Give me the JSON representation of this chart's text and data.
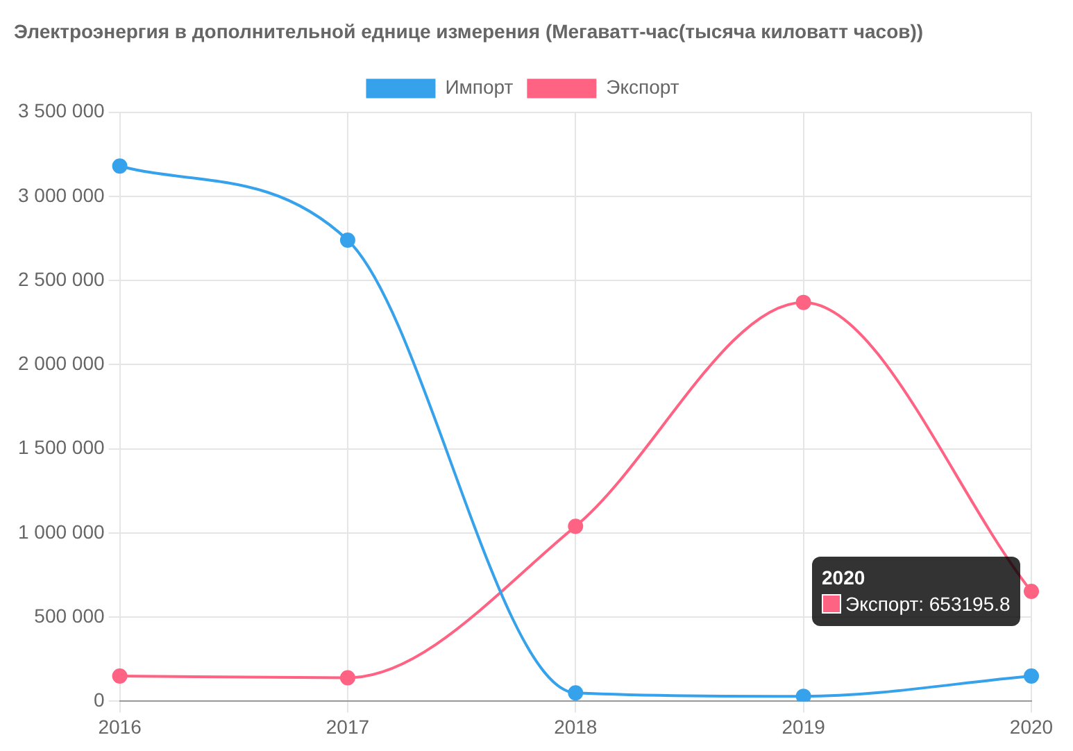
{
  "chart_data": {
    "type": "line",
    "title": "Электроэнергия в дополнительной еднице измерения (Мегаватт-час(тысяча киловатт часов))",
    "categories": [
      "2016",
      "2017",
      "2018",
      "2019",
      "2020"
    ],
    "series": [
      {
        "name": "Импорт",
        "color": "#36a2eb",
        "values": [
          3180000,
          2740000,
          50000,
          30000,
          150000
        ]
      },
      {
        "name": "Экспорт",
        "color": "#ff6384",
        "values": [
          150000,
          140000,
          1040000,
          2370000,
          653195.8
        ]
      }
    ],
    "ylim": [
      0,
      3500000
    ],
    "yticks": [
      {
        "value": 0,
        "label": "0"
      },
      {
        "value": 500000,
        "label": "500 000"
      },
      {
        "value": 1000000,
        "label": "1 000 000"
      },
      {
        "value": 1500000,
        "label": "1 500 000"
      },
      {
        "value": 2000000,
        "label": "2 000 000"
      },
      {
        "value": 2500000,
        "label": "2 500 000"
      },
      {
        "value": 3000000,
        "label": "3 000 000"
      },
      {
        "value": 3500000,
        "label": "3 500 000"
      }
    ],
    "annotations": [
      "2020",
      "Экспорт: 653195.8"
    ],
    "grid": true,
    "legend": "top",
    "marker": "circle",
    "line_style": "solid"
  }
}
